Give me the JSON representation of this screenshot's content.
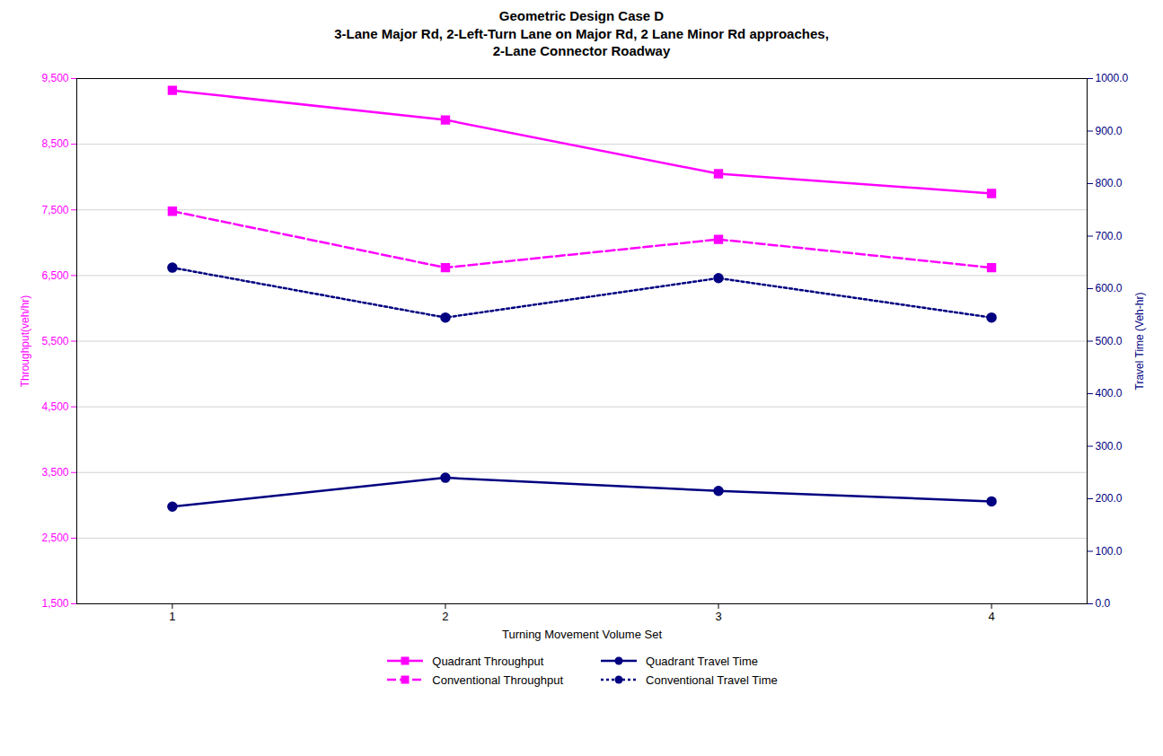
{
  "chart_data": {
    "type": "line",
    "title": "Geometric Design Case D\n3-Lane Major Rd, 2-Left-Turn Lane on Major Rd, 2 Lane Minor Rd approaches,\n2-Lane Connector Roadway",
    "xlabel": "Turning Movement Volume Set",
    "ylabel": "Throughput(veh/hr)",
    "y2label": "Travel Time (Veh-hr)",
    "x": [
      1,
      2,
      3,
      4
    ],
    "xlim": [
      0.65,
      4.35
    ],
    "xticks": [
      1,
      2,
      3,
      4
    ],
    "ylim": [
      1500,
      9500
    ],
    "yticks": [
      {
        "value": 1500,
        "label": "1,500"
      },
      {
        "value": 2500,
        "label": "2,500"
      },
      {
        "value": 3500,
        "label": "3,500"
      },
      {
        "value": 4500,
        "label": "4,500"
      },
      {
        "value": 5500,
        "label": "5,500"
      },
      {
        "value": 6500,
        "label": "6,500"
      },
      {
        "value": 7500,
        "label": "7,500"
      },
      {
        "value": 8500,
        "label": "8,500"
      },
      {
        "value": 9500,
        "label": "9,500"
      }
    ],
    "y2lim": [
      0.0,
      1000.0
    ],
    "y2ticks": [
      {
        "value": 0,
        "label": "0.0"
      },
      {
        "value": 100,
        "label": "100.0"
      },
      {
        "value": 200,
        "label": "200.0"
      },
      {
        "value": 300,
        "label": "300.0"
      },
      {
        "value": 400,
        "label": "400.0"
      },
      {
        "value": 500,
        "label": "500.0"
      },
      {
        "value": 600,
        "label": "600.0"
      },
      {
        "value": 700,
        "label": "700.0"
      },
      {
        "value": 800,
        "label": "800.0"
      },
      {
        "value": 900,
        "label": "900.0"
      },
      {
        "value": 1000,
        "label": "1000.0"
      }
    ],
    "grid": true,
    "legend": "bottom",
    "series": [
      {
        "name": "Quadrant Throughput",
        "color": "#FF00FF",
        "marker": "square",
        "line_style": "solid",
        "values": [
          9320,
          8870,
          8050,
          7750
        ]
      },
      {
        "name": "Conventional Throughput",
        "color": "#FF00FF",
        "marker": "square",
        "line_style": "dashed",
        "values": [
          7480,
          6620,
          7050,
          6620
        ]
      },
      {
        "name": "Quadrant Travel Time",
        "color": "#000080",
        "marker": "circle",
        "line_style": "solid",
        "axis": "y2",
        "values": [
          185,
          240,
          215,
          195
        ]
      },
      {
        "name": "Conventional Travel Time",
        "color": "#000080",
        "marker": "circle",
        "line_style": "dotted",
        "axis": "y2",
        "values": [
          640,
          545,
          620,
          545
        ]
      }
    ]
  }
}
